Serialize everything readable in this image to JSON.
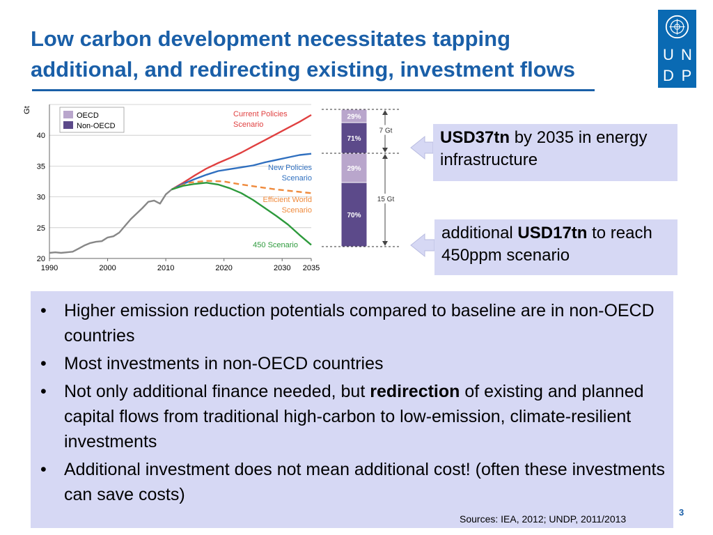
{
  "slide": {
    "title": "Low carbon development necessitates tapping additional, and redirecting existing, investment flows",
    "page_number": "3",
    "sources": "Sources: IEA, 2012; UNDP, 2011/2013"
  },
  "logo": {
    "letters": [
      "U",
      "N",
      "D",
      "P"
    ],
    "color": "#0a6ab3"
  },
  "callouts": {
    "top": {
      "bold": "USD37tn",
      "text": " by 2035 in energy infrastructure"
    },
    "bottom": {
      "prefix": "additional ",
      "bold": "USD17tn",
      "text": " to reach 450ppm scenario"
    }
  },
  "bullets": [
    {
      "text": "Higher emission reduction potentials compared to baseline are in non-OECD countries"
    },
    {
      "text": "Most investments in non-OECD countries"
    },
    {
      "pre": "Not only additional finance needed, but ",
      "bold": "redirection",
      "post": " of existing and planned capital flows from traditional high-carbon to low-emission, climate-resilient investments"
    },
    {
      "text": "Additional investment does not mean additional cost! (often these investments can save costs)"
    }
  ],
  "chart_data": [
    {
      "type": "line",
      "ylabel": "Gt",
      "xlim": [
        1990,
        2035
      ],
      "ylim": [
        20,
        45
      ],
      "xticks": [
        1990,
        2000,
        2010,
        2020,
        2030,
        2035
      ],
      "yticks": [
        20,
        25,
        30,
        35,
        40
      ],
      "grid": true,
      "legend": {
        "position": "top-left",
        "entries": [
          {
            "name": "OECD",
            "color": "#b9a6cc"
          },
          {
            "name": "Non-OECD",
            "color": "#5c4a8a"
          }
        ]
      },
      "series": [
        {
          "name": "Historical",
          "color": "#878787",
          "dashed": false,
          "points": [
            [
              1990,
              20.9
            ],
            [
              1991,
              21.0
            ],
            [
              1992,
              20.9
            ],
            [
              1993,
              21.0
            ],
            [
              1994,
              21.1
            ],
            [
              1995,
              21.6
            ],
            [
              1996,
              22.1
            ],
            [
              1997,
              22.5
            ],
            [
              1998,
              22.7
            ],
            [
              1999,
              22.8
            ],
            [
              2000,
              23.4
            ],
            [
              2001,
              23.6
            ],
            [
              2002,
              24.2
            ],
            [
              2003,
              25.3
            ],
            [
              2004,
              26.4
            ],
            [
              2005,
              27.3
            ],
            [
              2006,
              28.2
            ],
            [
              2007,
              29.2
            ],
            [
              2008,
              29.4
            ],
            [
              2009,
              28.9
            ],
            [
              2010,
              30.4
            ],
            [
              2011,
              31.2
            ]
          ]
        },
        {
          "name": "Current Policies Scenario",
          "color": "#e04040",
          "dashed": false,
          "points": [
            [
              2011,
              31.2
            ],
            [
              2013,
              32.3
            ],
            [
              2015,
              33.5
            ],
            [
              2017,
              34.6
            ],
            [
              2019,
              35.5
            ],
            [
              2021,
              36.3
            ],
            [
              2023,
              37.2
            ],
            [
              2025,
              38.2
            ],
            [
              2027,
              39.2
            ],
            [
              2029,
              40.2
            ],
            [
              2031,
              41.2
            ],
            [
              2033,
              42.2
            ],
            [
              2035,
              43.3
            ]
          ]
        },
        {
          "name": "New Policies Scenario",
          "color": "#2f6fbf",
          "dashed": false,
          "points": [
            [
              2011,
              31.2
            ],
            [
              2013,
              32.1
            ],
            [
              2015,
              32.9
            ],
            [
              2017,
              33.6
            ],
            [
              2019,
              34.2
            ],
            [
              2021,
              34.5
            ],
            [
              2023,
              34.8
            ],
            [
              2025,
              35.1
            ],
            [
              2027,
              35.6
            ],
            [
              2029,
              36.0
            ],
            [
              2031,
              36.4
            ],
            [
              2033,
              36.8
            ],
            [
              2035,
              37.0
            ]
          ]
        },
        {
          "name": "Efficient World Scenario",
          "color": "#ef8a3c",
          "dashed": true,
          "points": [
            [
              2011,
              31.2
            ],
            [
              2014,
              32.3
            ],
            [
              2017,
              32.6
            ],
            [
              2020,
              32.5
            ],
            [
              2023,
              32.0
            ],
            [
              2026,
              31.6
            ],
            [
              2029,
              31.2
            ],
            [
              2032,
              30.9
            ],
            [
              2035,
              30.6
            ]
          ]
        },
        {
          "name": "450 Scenario",
          "color": "#2d9a3c",
          "dashed": false,
          "points": [
            [
              2011,
              31.2
            ],
            [
              2013,
              31.8
            ],
            [
              2015,
              32.1
            ],
            [
              2017,
              32.3
            ],
            [
              2019,
              32.0
            ],
            [
              2021,
              31.4
            ],
            [
              2023,
              30.6
            ],
            [
              2025,
              29.5
            ],
            [
              2027,
              28.2
            ],
            [
              2029,
              26.9
            ],
            [
              2031,
              25.5
            ],
            [
              2033,
              23.8
            ],
            [
              2035,
              22.2
            ]
          ]
        }
      ],
      "series_labels": [
        {
          "lines": [
            "Current Policies",
            "Scenario"
          ],
          "color": "#e04040"
        },
        {
          "lines": [
            "New Policies",
            "Scenario"
          ],
          "color": "#2f6fbf"
        },
        {
          "lines": [
            "Efficient World",
            "Scenario"
          ],
          "color": "#ef8a3c"
        },
        {
          "lines": [
            "450 Scenario"
          ],
          "color": "#2d9a3c"
        }
      ]
    },
    {
      "type": "bar",
      "stacked": true,
      "segments": [
        {
          "label": "70%",
          "group": "Non-OECD",
          "color": "#5c4a8a"
        },
        {
          "label": "29%",
          "group": "OECD",
          "color": "#b9a6cc"
        },
        {
          "label": "71%",
          "group": "Non-OECD",
          "color": "#5c4a8a"
        },
        {
          "label": "29%",
          "group": "OECD",
          "color": "#b9a6cc"
        }
      ],
      "brackets": [
        {
          "label": "7 Gt",
          "value": 7
        },
        {
          "label": "15 Gt",
          "value": 15
        }
      ]
    }
  ]
}
